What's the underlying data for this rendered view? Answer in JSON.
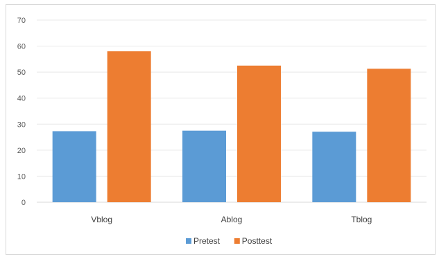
{
  "chart_data": {
    "type": "bar",
    "title": "",
    "xlabel": "",
    "ylabel": "",
    "categories": [
      "Vblog",
      "Ablog",
      "Tblog"
    ],
    "series": [
      {
        "name": "Pretest",
        "values": [
          27.3,
          27.5,
          27.1
        ],
        "color": "#5b9bd5"
      },
      {
        "name": "Posttest",
        "values": [
          58,
          52.5,
          51.3
        ],
        "color": "#ed7d31"
      }
    ],
    "ylim": [
      0,
      70
    ],
    "yticks": [
      0,
      10,
      20,
      30,
      40,
      50,
      60,
      70
    ],
    "grid": true,
    "legend_position": "bottom"
  }
}
